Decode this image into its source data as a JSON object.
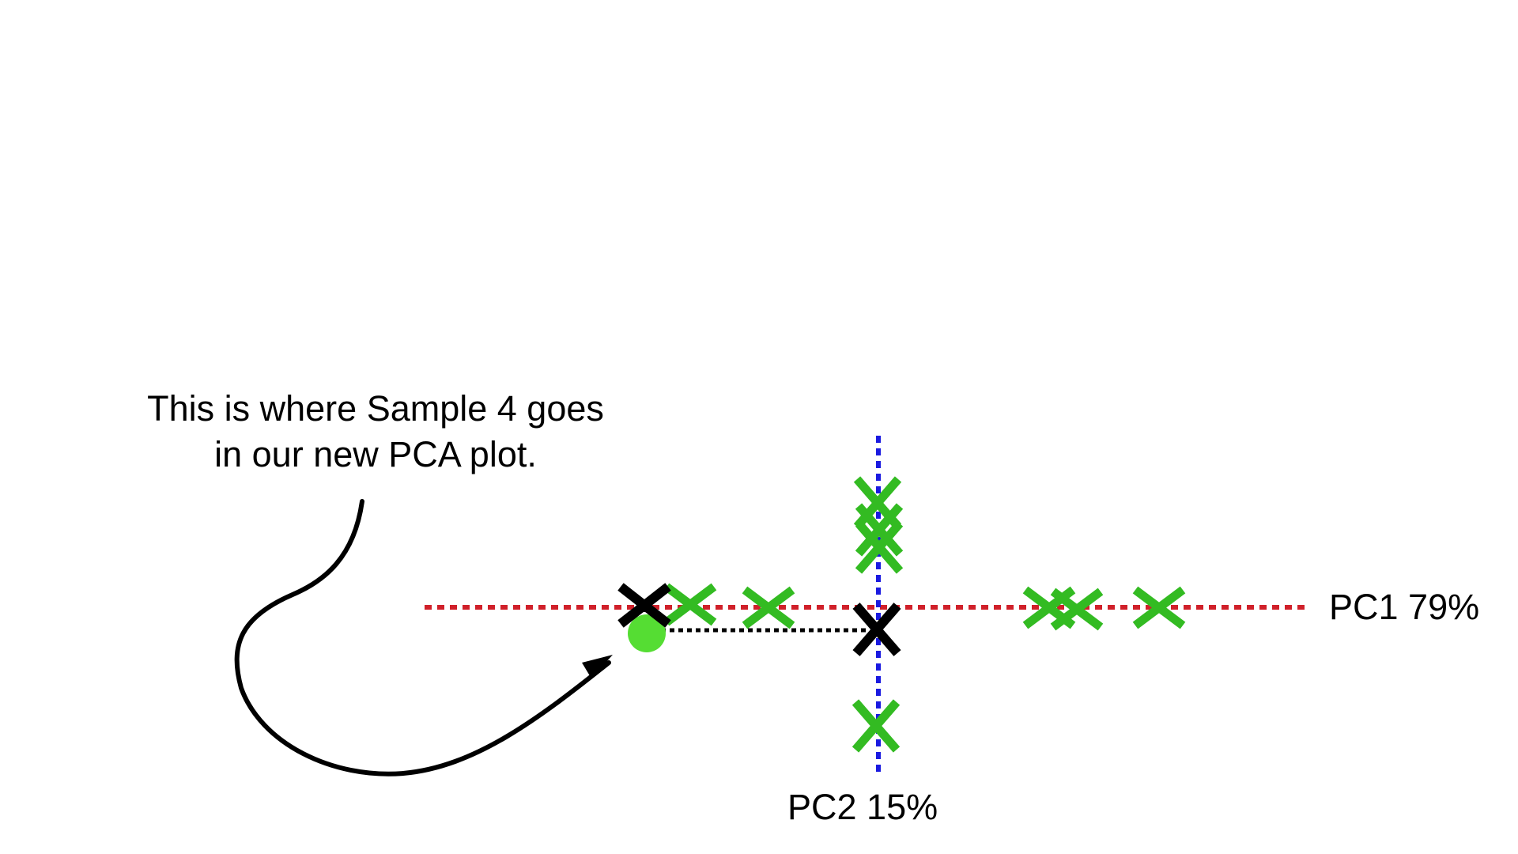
{
  "annotation": {
    "line1": "This is where Sample 4 goes",
    "line2": "in our new PCA plot."
  },
  "axes": {
    "pc1_label": "PC1 79%",
    "pc2_label": "PC2 15%",
    "pc1_color": "#d0202a",
    "pc2_color": "#1a1ae0"
  },
  "colors": {
    "sample_marker": "#33bb22",
    "highlight_dot": "#55dd33",
    "projected_marker": "#000000",
    "arrow": "#000000"
  },
  "markers": {
    "green_on_pc1": 6,
    "green_on_pc2": 4,
    "black": 2
  }
}
